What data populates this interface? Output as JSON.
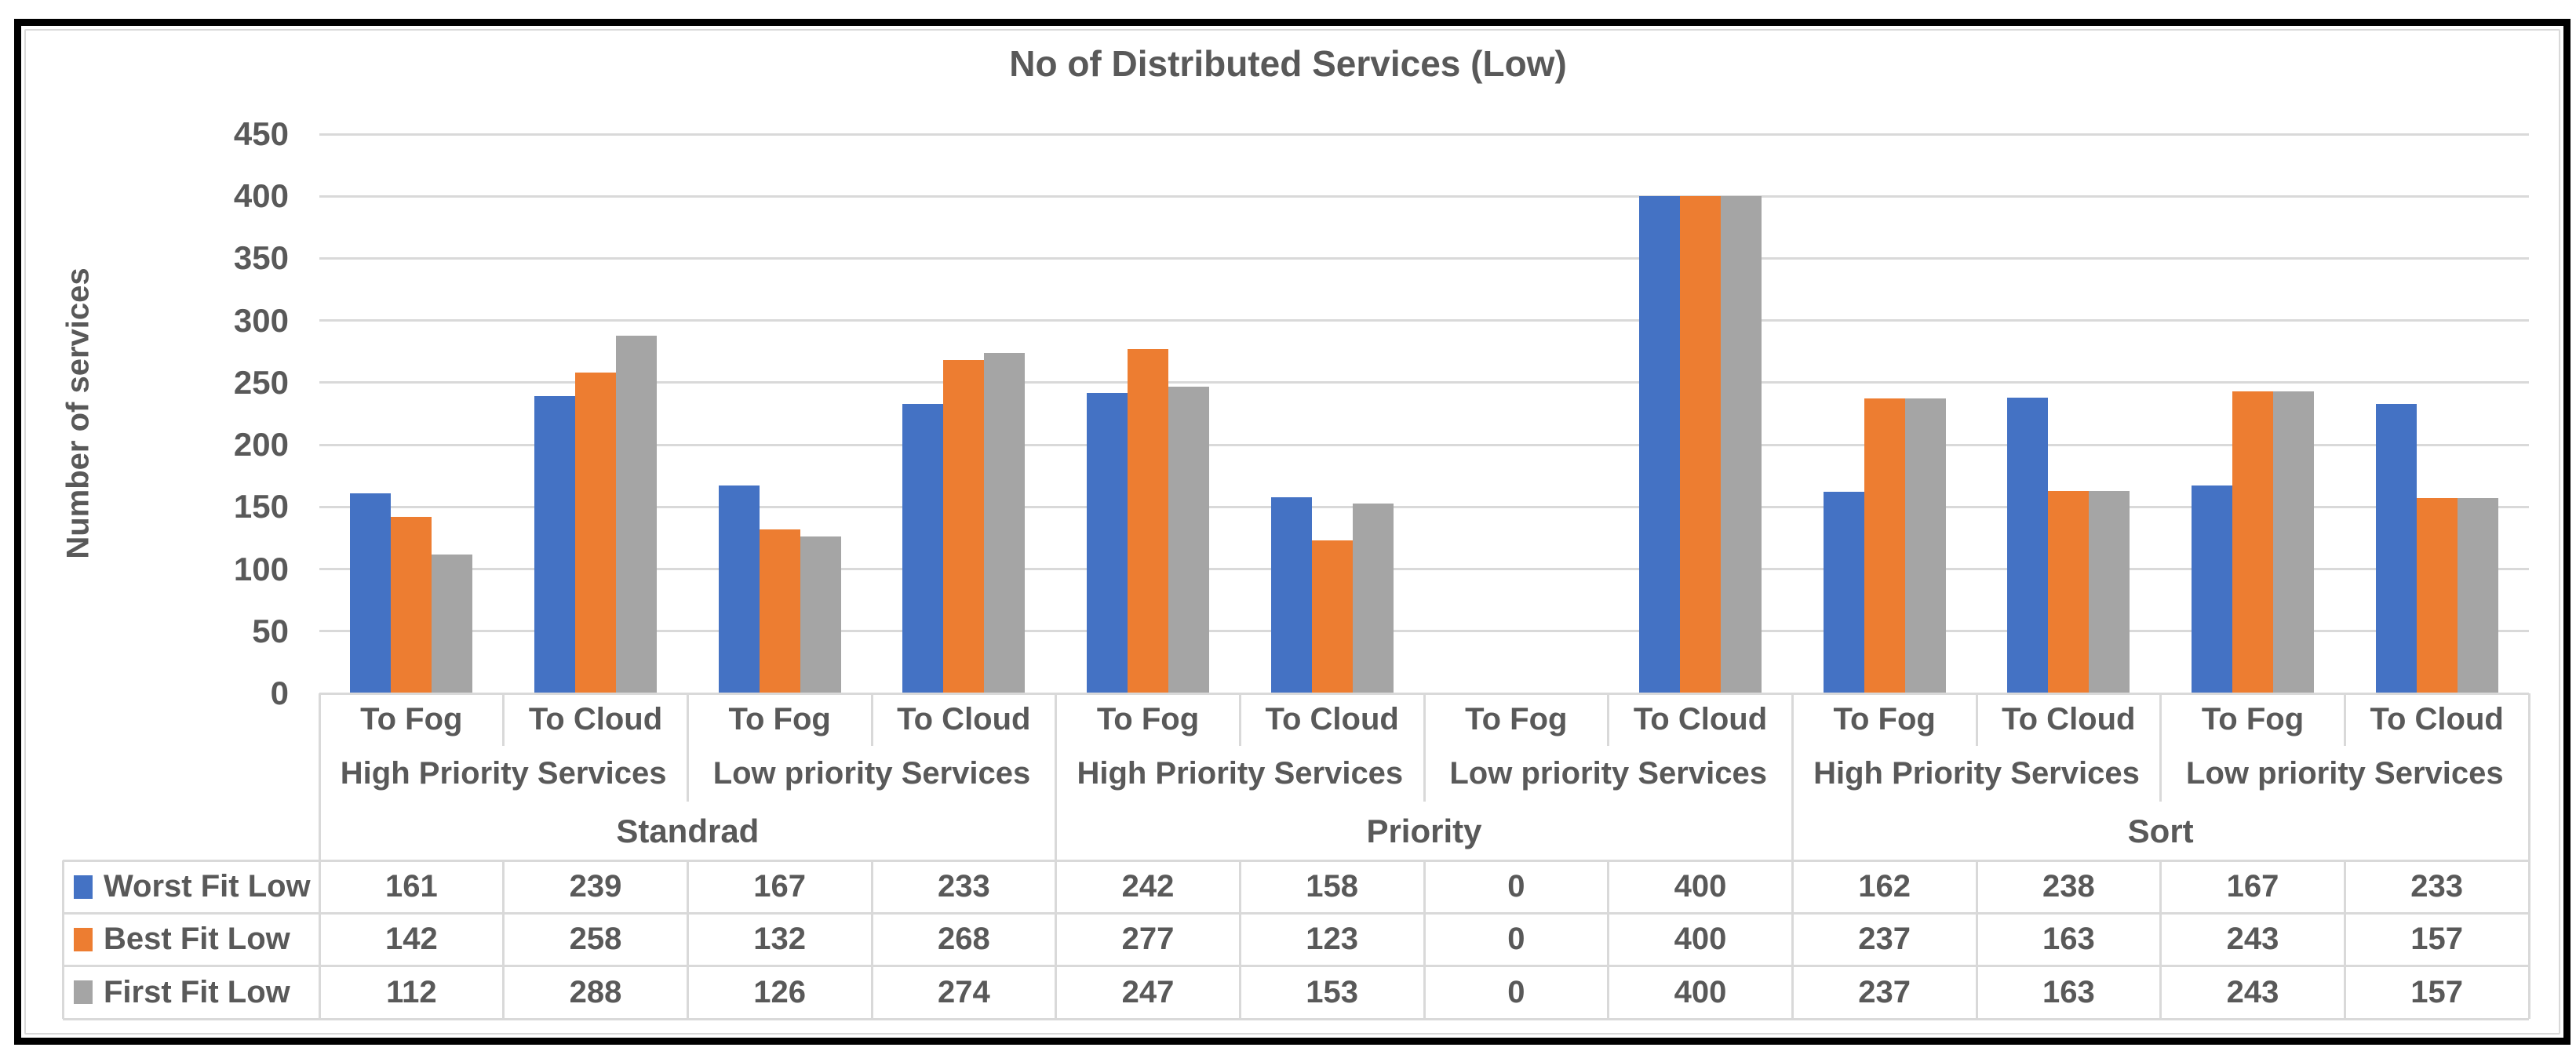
{
  "chart_data": {
    "type": "bar",
    "title": "No of Distributed Services (Low)",
    "xlabel": "",
    "ylabel": "Number of services",
    "ylim": [
      0,
      450
    ],
    "y_tick_step": 50,
    "grid": true,
    "legend_position": "left column of data table",
    "group_labels": [
      "Standrad",
      "Priority",
      "Sort"
    ],
    "subgroup_labels": [
      "High Priority Services",
      "Low priority Services",
      "High Priority Services",
      "Low priority Services",
      "High Priority Services",
      "Low priority Services"
    ],
    "categories": [
      "To Fog",
      "To Cloud",
      "To Fog",
      "To Cloud",
      "To Fog",
      "To Cloud",
      "To Fog",
      "To Cloud",
      "To Fog",
      "To Cloud",
      "To Fog",
      "To Cloud"
    ],
    "series": [
      {
        "name": "Worst Fit Low",
        "color": "#4472C4",
        "values": [
          161,
          239,
          167,
          233,
          242,
          158,
          0,
          400,
          162,
          238,
          167,
          233
        ]
      },
      {
        "name": "Best Fit Low",
        "color": "#ED7D31",
        "values": [
          142,
          258,
          132,
          268,
          277,
          123,
          0,
          400,
          237,
          163,
          243,
          157
        ]
      },
      {
        "name": "First Fit Low",
        "color": "#A5A5A5",
        "values": [
          112,
          288,
          126,
          274,
          247,
          153,
          0,
          400,
          237,
          163,
          243,
          157
        ]
      }
    ]
  },
  "colors": {
    "text": "#595959",
    "gridline": "#D9D9D9",
    "table_border": "#D9D9D9",
    "frame": "#000000"
  }
}
